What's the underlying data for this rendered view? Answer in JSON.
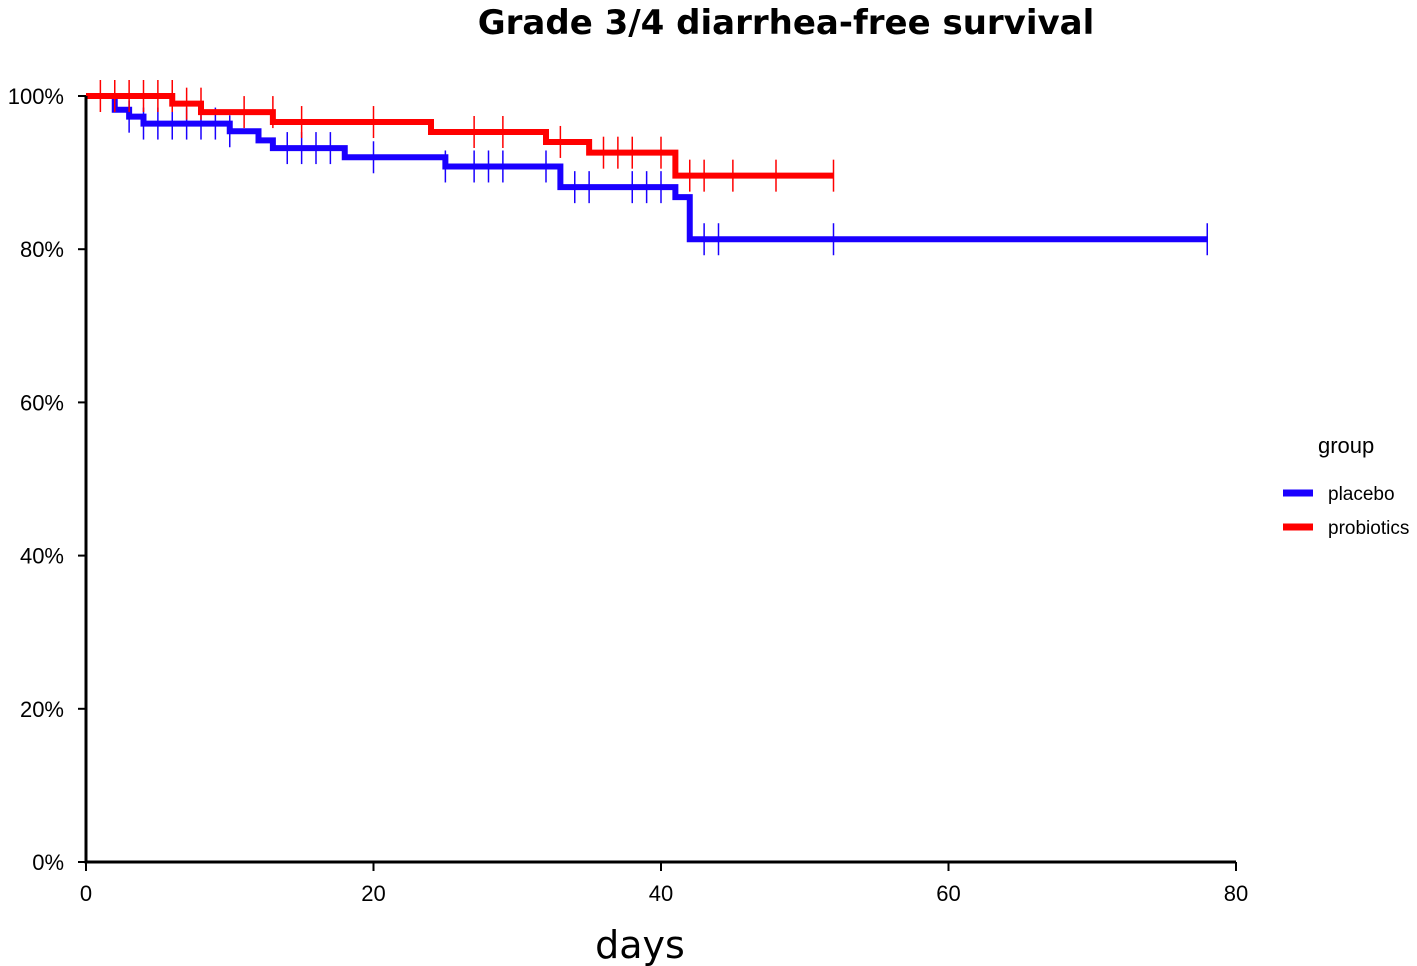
{
  "chart_data": {
    "type": "line",
    "subtype": "kaplan-meier step",
    "title": "Grade 3/4 diarrhea-free survival",
    "xlabel": "days",
    "ylabel": "",
    "xlim": [
      0,
      80
    ],
    "ylim": [
      0,
      100
    ],
    "x_ticks": [
      0,
      20,
      40,
      60,
      80
    ],
    "x_tick_labels": [
      "0",
      "20",
      "40",
      "60",
      "80"
    ],
    "y_ticks": [
      0,
      20,
      40,
      60,
      80,
      100
    ],
    "y_tick_labels": [
      "0%",
      "20%",
      "40%",
      "60%",
      "80%",
      "100%"
    ],
    "grid": false,
    "legend": {
      "title": "group",
      "position": "right"
    },
    "series": [
      {
        "name": "placebo",
        "color": "#1a00ff",
        "steps": [
          [
            0,
            100
          ],
          [
            2,
            98.2
          ],
          [
            3,
            97.3
          ],
          [
            4,
            96.4
          ],
          [
            10,
            95.4
          ],
          [
            12,
            94.2
          ],
          [
            13,
            93.2
          ],
          [
            18,
            92.0
          ],
          [
            25,
            90.8
          ],
          [
            33,
            88.1
          ],
          [
            41,
            86.8
          ],
          [
            42,
            81.3
          ],
          [
            78,
            81.3
          ]
        ],
        "censored": [
          [
            3,
            97.3
          ],
          [
            4,
            96.4
          ],
          [
            5,
            96.4
          ],
          [
            6,
            96.4
          ],
          [
            7,
            96.4
          ],
          [
            8,
            96.4
          ],
          [
            9,
            96.4
          ],
          [
            10,
            95.4
          ],
          [
            14,
            93.2
          ],
          [
            15,
            93.2
          ],
          [
            16,
            93.2
          ],
          [
            17,
            93.2
          ],
          [
            20,
            92.0
          ],
          [
            25,
            90.8
          ],
          [
            27,
            90.8
          ],
          [
            28,
            90.8
          ],
          [
            29,
            90.8
          ],
          [
            32,
            90.8
          ],
          [
            34,
            88.1
          ],
          [
            35,
            88.1
          ],
          [
            38,
            88.1
          ],
          [
            39,
            88.1
          ],
          [
            40,
            88.1
          ],
          [
            43,
            81.3
          ],
          [
            44,
            81.3
          ],
          [
            52,
            81.3
          ],
          [
            78,
            81.3
          ]
        ]
      },
      {
        "name": "probiotics",
        "color": "#ff0000",
        "steps": [
          [
            0,
            100
          ],
          [
            6,
            99.0
          ],
          [
            8,
            97.9
          ],
          [
            13,
            96.6
          ],
          [
            24,
            95.3
          ],
          [
            32,
            94.0
          ],
          [
            35,
            92.6
          ],
          [
            41,
            89.6
          ],
          [
            52,
            89.6
          ]
        ],
        "censored": [
          [
            1,
            100
          ],
          [
            2,
            100
          ],
          [
            3,
            100
          ],
          [
            4,
            100
          ],
          [
            5,
            100
          ],
          [
            6,
            100
          ],
          [
            7,
            99.0
          ],
          [
            8,
            99.0
          ],
          [
            11,
            97.9
          ],
          [
            13,
            97.9
          ],
          [
            15,
            96.6
          ],
          [
            20,
            96.6
          ],
          [
            27,
            95.3
          ],
          [
            29,
            95.3
          ],
          [
            33,
            94.0
          ],
          [
            36,
            92.6
          ],
          [
            37,
            92.6
          ],
          [
            38,
            92.6
          ],
          [
            40,
            92.6
          ],
          [
            42,
            89.6
          ],
          [
            43,
            89.6
          ],
          [
            45,
            89.6
          ],
          [
            48,
            89.6
          ],
          [
            52,
            89.6
          ]
        ]
      }
    ]
  }
}
